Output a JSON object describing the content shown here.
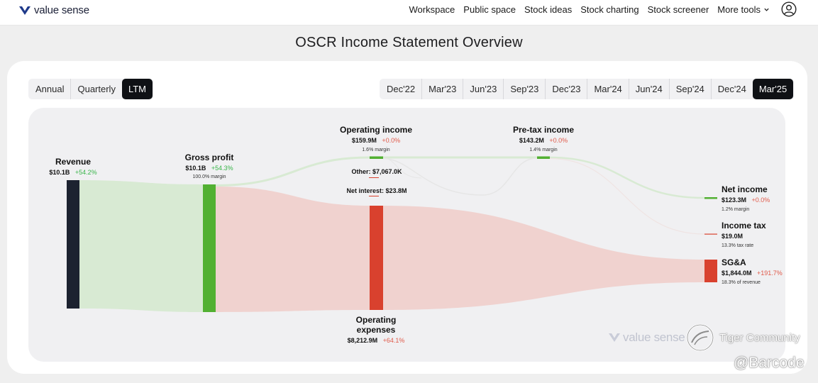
{
  "brand": {
    "name": "value sense"
  },
  "nav": {
    "items": [
      "Workspace",
      "Public space",
      "Stock ideas",
      "Stock charting",
      "Stock screener"
    ],
    "more_label": "More tools"
  },
  "page_title": "OSCR Income Statement Overview",
  "period_type": {
    "options": [
      "Annual",
      "Quarterly",
      "LTM"
    ],
    "selected": "LTM"
  },
  "periods": {
    "options": [
      "Dec'22",
      "Mar'23",
      "Jun'23",
      "Sep'23",
      "Dec'23",
      "Mar'24",
      "Jun'24",
      "Sep'24",
      "Dec'24",
      "Mar'25"
    ],
    "selected": "Mar'25"
  },
  "colors": {
    "revenue": "#1c2230",
    "profit": "#52b032",
    "expense": "#d9412e",
    "profit_flow": "#d8ead3",
    "expense_flow": "#f0d2cf",
    "positive_text": "#39b54a",
    "negative_text": "#e05a4a"
  },
  "sankey": {
    "revenue": {
      "name": "Revenue",
      "value": "$10.1B",
      "change": "+54.2%"
    },
    "gross_profit": {
      "name": "Gross profit",
      "value": "$10.1B",
      "change": "+54.3%",
      "sub": "100.0% margin"
    },
    "operating_income": {
      "name": "Operating income",
      "value": "$159.9M",
      "change": "+0.0%",
      "sub": "1.6% margin"
    },
    "pretax_income": {
      "name": "Pre-tax income",
      "value": "$143.2M",
      "change": "+0.0%",
      "sub": "1.4% margin"
    },
    "other": {
      "label": "Other: $7,067.0K"
    },
    "net_interest": {
      "label": "Net interest: $23.8M"
    },
    "operating_expenses": {
      "name_line1": "Operating",
      "name_line2": "expenses",
      "value": "$8,212.9M",
      "change": "+64.1%"
    },
    "net_income": {
      "name": "Net income",
      "value": "$123.3M",
      "change": "+0.0%",
      "sub": "1.2% margin"
    },
    "income_tax": {
      "name": "Income tax",
      "value": "$19.0M",
      "sub": "13.3% tax rate"
    },
    "sga": {
      "name": "SG&A",
      "value": "$1,844.0M",
      "change": "+191.7%",
      "sub": "18.3% of revenue"
    }
  },
  "watermarks": {
    "value_sense": "value sense",
    "tiger": "Tiger Community",
    "user": "@Barcode"
  }
}
